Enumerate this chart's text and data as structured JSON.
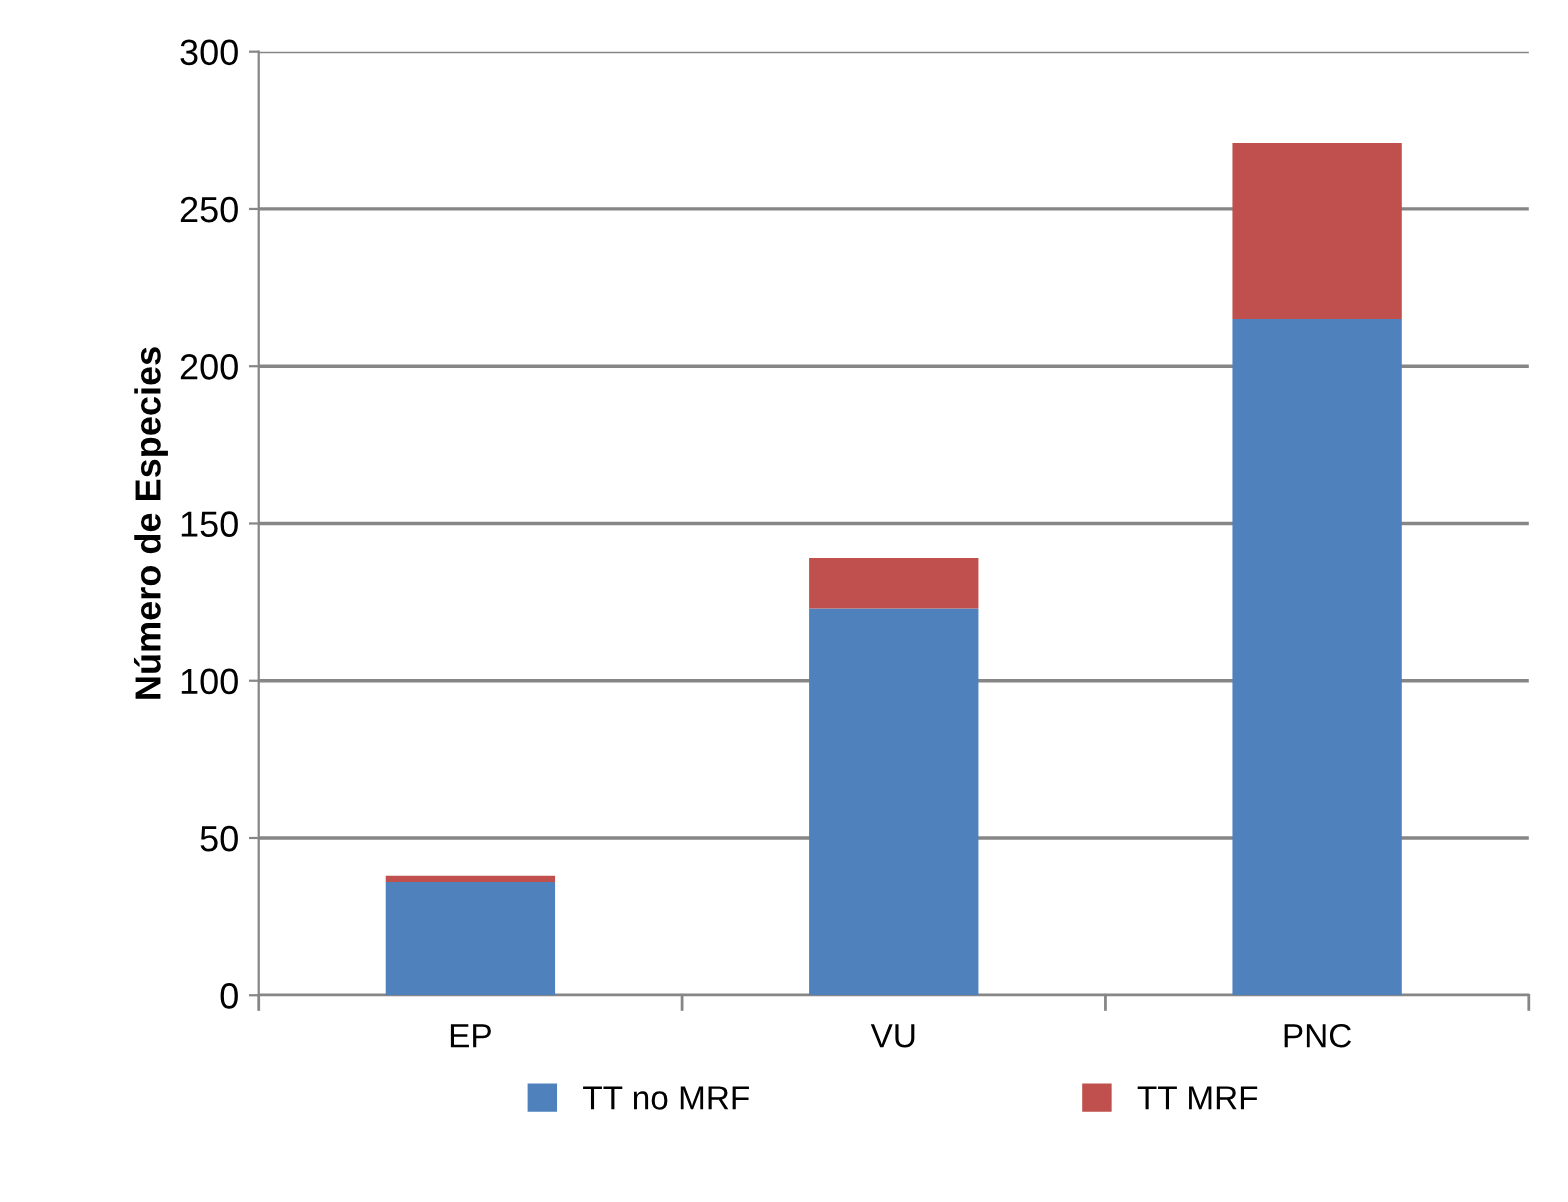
{
  "chart_data": {
    "type": "bar",
    "stacked": true,
    "ylabel": "Número de Especies",
    "categories": [
      "EP",
      "VU",
      "PNC"
    ],
    "series": [
      {
        "name": "TT no MRF",
        "color": "#4f81bd",
        "values": [
          36,
          123,
          215
        ]
      },
      {
        "name": "TT MRF",
        "color": "#c0504d",
        "values": [
          2,
          16,
          56
        ]
      }
    ],
    "ylim": [
      0,
      300
    ],
    "yticks": [
      0,
      50,
      100,
      150,
      200,
      250,
      300
    ],
    "grid": "y",
    "legend": "bottom"
  }
}
